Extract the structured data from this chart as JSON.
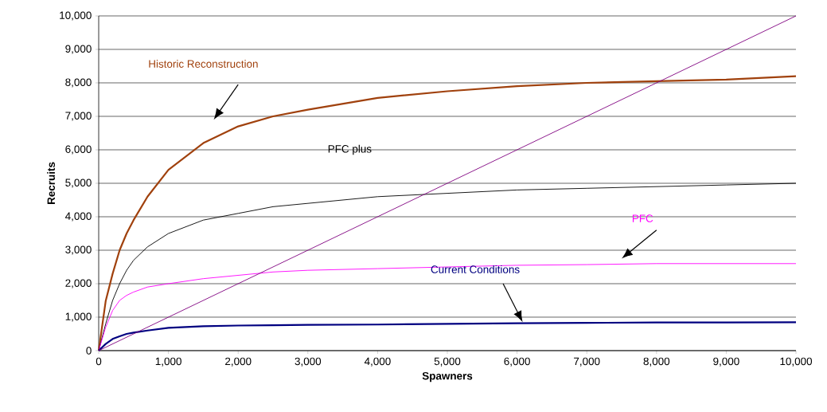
{
  "chart_data": {
    "type": "line",
    "xlabel": "Spawners",
    "ylabel": "Recruits",
    "xlim": [
      0,
      10000
    ],
    "ylim": [
      0,
      10000
    ],
    "xticks": [
      0,
      {
        "value": 1000,
        "label": "1,000"
      },
      {
        "value": 2000,
        "label": "2,000"
      },
      {
        "value": 3000,
        "label": "3,000"
      },
      {
        "value": 4000,
        "label": "4,000"
      },
      {
        "value": 5000,
        "label": "5,000"
      },
      {
        "value": 6000,
        "label": "6,000"
      },
      {
        "value": 7000,
        "label": "7,000"
      },
      {
        "value": 8000,
        "label": "8,000"
      },
      {
        "value": 9000,
        "label": "9,000"
      },
      {
        "value": 10000,
        "label": "10,000"
      }
    ],
    "yticks": [
      0,
      {
        "value": 1000,
        "label": "1,000"
      },
      {
        "value": 2000,
        "label": "2,000"
      },
      {
        "value": 3000,
        "label": "3,000"
      },
      {
        "value": 4000,
        "label": "4,000"
      },
      {
        "value": 5000,
        "label": "5,000"
      },
      {
        "value": 6000,
        "label": "6,000"
      },
      {
        "value": 7000,
        "label": "7,000"
      },
      {
        "value": 8000,
        "label": "8,000"
      },
      {
        "value": 9000,
        "label": "9,000"
      },
      {
        "value": 10000,
        "label": "10,000"
      }
    ],
    "grid": "y",
    "marker": "none",
    "line_style": "solid",
    "x": [
      0,
      100,
      200,
      300,
      400,
      500,
      700,
      1000,
      1500,
      2000,
      2500,
      3000,
      4000,
      5000,
      6000,
      7000,
      8000,
      9000,
      10000
    ],
    "series": [
      {
        "name": "Historic Reconstruction",
        "color": "#a0410d",
        "values": [
          0,
          1480,
          2300,
          3000,
          3500,
          3900,
          4600,
          5400,
          6200,
          6700,
          7000,
          7200,
          7550,
          7750,
          7900,
          8000,
          8050,
          8100,
          8200
        ]
      },
      {
        "name": "PFC plus",
        "color": "#000000",
        "values": [
          0,
          800,
          1500,
          2000,
          2400,
          2700,
          3100,
          3500,
          3900,
          4100,
          4300,
          4400,
          4600,
          4700,
          4800,
          4850,
          4900,
          4950,
          5000
        ]
      },
      {
        "name": "PFC",
        "color": "#ff00ff",
        "values": [
          0,
          700,
          1200,
          1500,
          1650,
          1750,
          1900,
          2000,
          2150,
          2250,
          2350,
          2400,
          2450,
          2500,
          2550,
          2570,
          2600,
          2600,
          2600
        ]
      },
      {
        "name": "Current Conditions",
        "color": "#000080",
        "values": [
          0,
          200,
          350,
          430,
          500,
          540,
          600,
          680,
          730,
          750,
          760,
          770,
          780,
          800,
          820,
          830,
          840,
          840,
          850
        ]
      },
      {
        "color": "#800080",
        "x": [
          0,
          10000
        ],
        "values": [
          0,
          10000
        ]
      }
    ]
  }
}
